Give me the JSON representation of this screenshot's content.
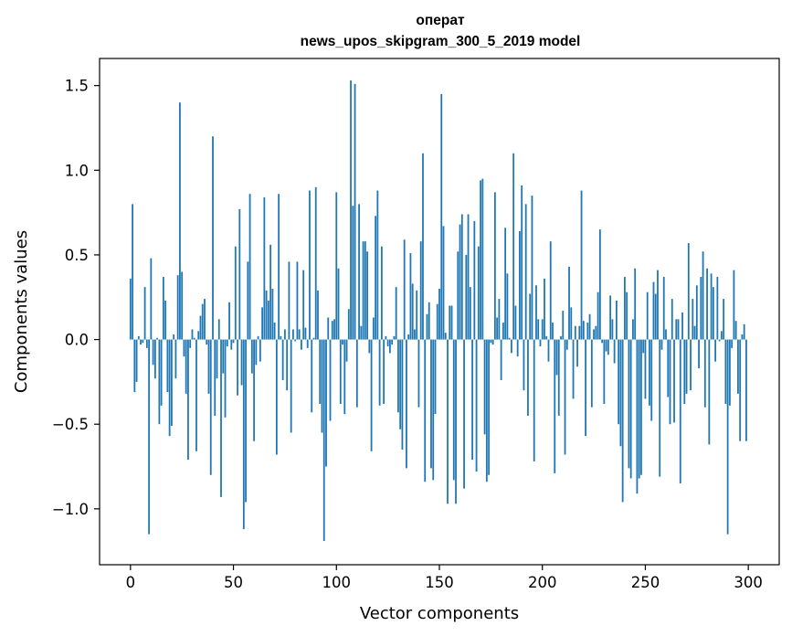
{
  "chart_data": {
    "type": "bar",
    "title": "оперaт",
    "subtitle": "news_upos_skipgram_300_5_2019 model",
    "xlabel": "Vector components",
    "ylabel": "Components values",
    "xlim": [
      -15,
      315
    ],
    "ylim": [
      -1.33,
      1.66
    ],
    "xticks": [
      0,
      50,
      100,
      150,
      200,
      250,
      300
    ],
    "yticks": [
      1.5,
      1.0,
      0.5,
      0.0,
      -0.5,
      -1.0
    ],
    "ytick_labels": [
      "1.5",
      "1.0",
      "0.5",
      "0.0",
      "−0.5",
      "−1.0"
    ],
    "bar_color": "#1f77b4",
    "grid": false,
    "x": "0..299",
    "values": [
      0.36,
      0.8,
      -0.31,
      -0.25,
      0.02,
      -0.03,
      -0.02,
      0.31,
      -0.05,
      -1.15,
      0.48,
      -0.15,
      -0.23,
      0.01,
      -0.5,
      -0.39,
      0.37,
      0.23,
      -0.31,
      -0.57,
      -0.51,
      0.03,
      -0.23,
      0.38,
      1.4,
      0.4,
      -0.1,
      -0.32,
      -0.71,
      -0.05,
      0.06,
      0.01,
      -0.66,
      0.05,
      0.14,
      0.21,
      0.24,
      -0.03,
      -0.32,
      -0.8,
      1.2,
      -0.45,
      -0.23,
      0.12,
      -0.93,
      -0.2,
      -0.46,
      -0.04,
      0.22,
      -0.06,
      -0.02,
      0.55,
      -0.33,
      0.77,
      -0.27,
      -1.12,
      -0.96,
      0.46,
      0.86,
      -0.2,
      -0.6,
      -0.15,
      0.02,
      -0.13,
      0.19,
      0.84,
      0.29,
      0.23,
      0.56,
      0.3,
      0.1,
      -0.68,
      0.86,
      0.02,
      -0.24,
      0.06,
      -0.3,
      0.46,
      -0.55,
      0.06,
      -0.01,
      0.46,
      0.06,
      -0.06,
      0.41,
      0.07,
      -0.05,
      0.88,
      -0.43,
      0.01,
      0.9,
      0.29,
      -0.38,
      -0.55,
      -1.19,
      -0.75,
      0.13,
      -0.48,
      0.11,
      0.12,
      0.87,
      0.42,
      -0.38,
      -0.03,
      -0.44,
      -0.13,
      0.18,
      1.53,
      0.79,
      1.51,
      -0.4,
      0.8,
      0.08,
      0.58,
      0.58,
      0.52,
      -0.08,
      -0.66,
      0.13,
      0.73,
      0.88,
      -0.39,
      0.55,
      -0.38,
      0.02,
      -0.04,
      -0.08,
      -0.03,
      0.02,
      0.31,
      -0.43,
      -0.53,
      -0.65,
      0.59,
      -0.76,
      0.03,
      0.51,
      0.33,
      0.06,
      0.29,
      -0.4,
      0.58,
      1.1,
      -0.84,
      0.15,
      0.22,
      -0.76,
      -0.83,
      -0.44,
      0.21,
      0.3,
      1.45,
      0.67,
      0.04,
      -0.97,
      0.2,
      0.2,
      -0.83,
      -0.97,
      0.52,
      0.68,
      0.74,
      -0.88,
      0.5,
      0.74,
      0.31,
      -0.71,
      0.7,
      -0.78,
      0.55,
      0.94,
      0.95,
      -0.56,
      -0.84,
      -0.8,
      -0.02,
      -0.03,
      0.87,
      0.13,
      0.24,
      -0.24,
      0.1,
      0.66,
      0.39,
      0.01,
      -0.08,
      1.1,
      0.2,
      -0.1,
      0.64,
      0.91,
      -0.3,
      0.8,
      -0.45,
      0.27,
      0.85,
      -0.72,
      0.32,
      0.12,
      -0.04,
      0.12,
      0.36,
      0.02,
      -0.13,
      0.58,
      0.1,
      -0.79,
      -0.21,
      -0.45,
      0.02,
      0.17,
      -0.68,
      -0.06,
      0.43,
      0.19,
      -0.35,
      0.08,
      -0.16,
      0.08,
      0.88,
      0.11,
      -0.57,
      0.1,
      0.15,
      -0.4,
      0.06,
      0.08,
      0.28,
      0.65,
      -0.02,
      -0.38,
      -0.07,
      -0.09,
      0.26,
      0.12,
      -0.14,
      0.23,
      -0.5,
      -0.63,
      -0.96,
      0.37,
      0.28,
      -0.76,
      -0.82,
      0.12,
      0.42,
      -0.91,
      -0.82,
      -0.8,
      -0.08,
      -0.35,
      0.28,
      -0.39,
      -0.48,
      0.34,
      0.27,
      0.41,
      -0.81,
      -0.06,
      0.37,
      0.06,
      -0.34,
      -0.5,
      0.24,
      -0.49,
      0.12,
      0.12,
      -0.85,
      0.16,
      -0.38,
      -0.32,
      0.57,
      -0.3,
      0.24,
      0.08,
      0.32,
      -0.17,
      0.37,
      0.52,
      -0.4,
      0.42,
      -0.62,
      0.39,
      0.31,
      -0.13,
      0.37,
      -0.01,
      0.05,
      0.24,
      -0.38,
      -1.15,
      -0.39,
      -0.05,
      0.41,
      0.11,
      -0.32,
      -0.6,
      0.03,
      0.09,
      -0.6
    ]
  }
}
